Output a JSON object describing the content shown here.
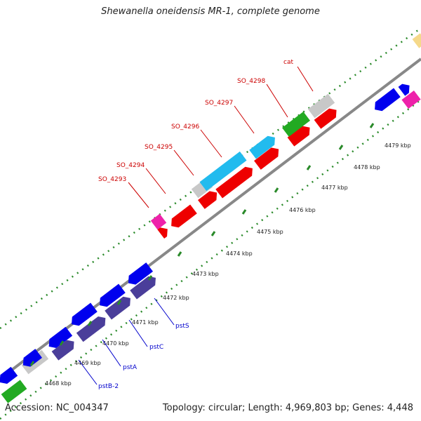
{
  "title": "Shewanella oneidensis MR-1, complete genome",
  "accession": "Accession: NC_004347",
  "summary": "Topology: circular; Length: 4,969,803 bp; Genes: 4,448",
  "colors": {
    "blue": "#0000ee",
    "navy": "#4a3e9a",
    "red": "#ee0000",
    "cyan": "#22bbee",
    "green": "#22aa22",
    "gray": "#c8c8c8",
    "magenta": "#ee22aa",
    "yellow": "#f5d98a",
    "backbone": "#888888",
    "tick": "#2a8a2a",
    "label_red": "#cc0000",
    "label_blue": "#0000cc"
  },
  "kbp_ticks": [
    "4468 kbp",
    "4469 kbp",
    "4470 kbp",
    "4471 kbp",
    "4472 kbp",
    "4473 kbp",
    "4474 kbp",
    "4475 kbp",
    "4476 kbp",
    "4477 kbp",
    "4478 kbp",
    "4479 kbp"
  ],
  "gene_labels_red": [
    "SO_4293",
    "SO_4294",
    "SO_4295",
    "SO_4296",
    "SO_4297",
    "SO_4298",
    "cat"
  ],
  "gene_labels_blue": [
    "pstB-2",
    "pstA",
    "pstC",
    "pstS"
  ]
}
